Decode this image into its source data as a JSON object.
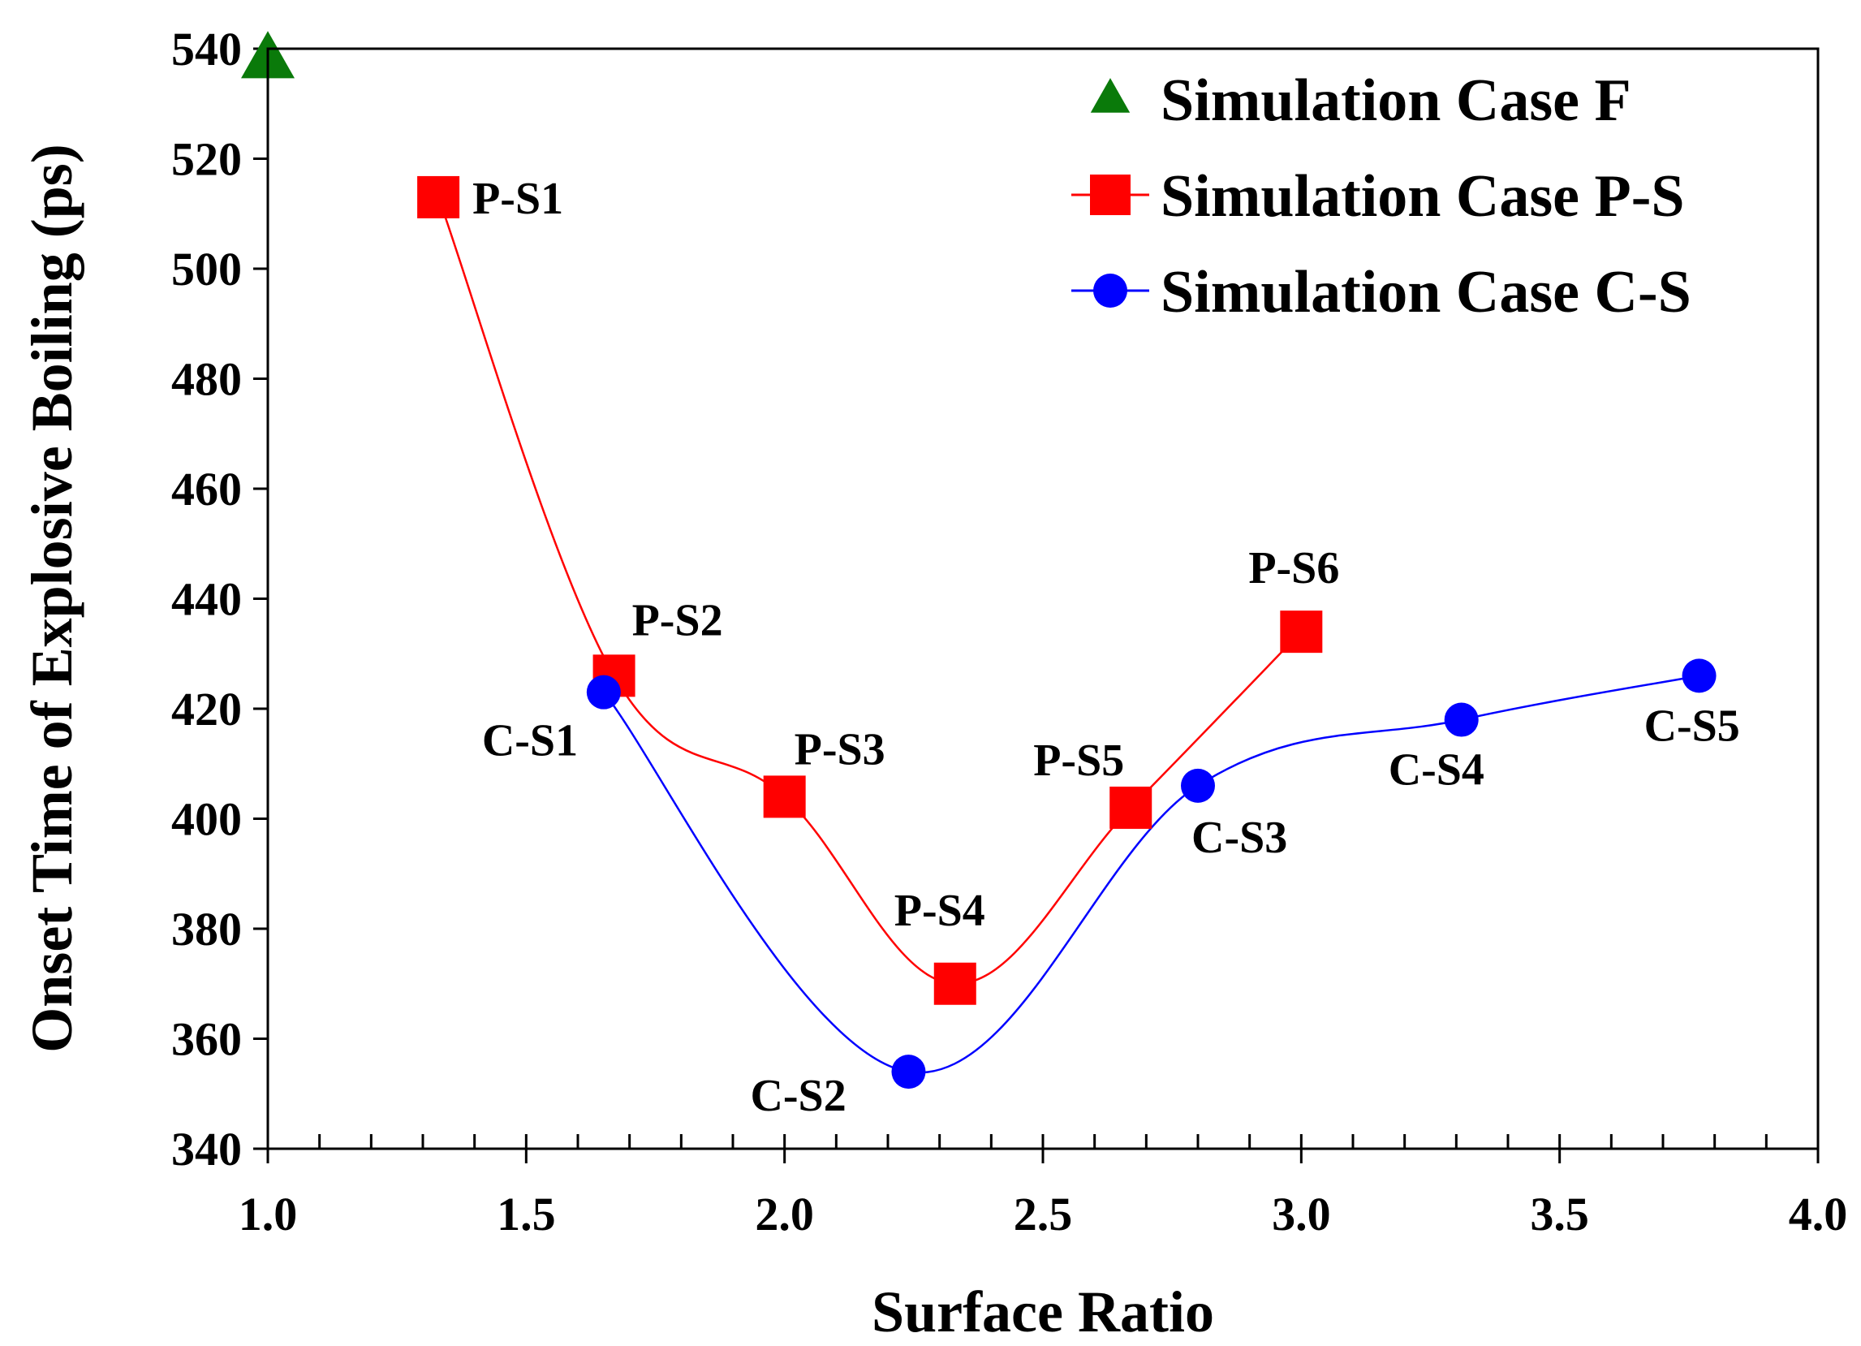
{
  "chart_data": {
    "type": "scatter",
    "xlabel": "Surface Ratio",
    "ylabel": "Onset Time of Explosive Boiling (ps)",
    "xlim": [
      1.0,
      4.0
    ],
    "ylim": [
      340,
      540
    ],
    "x_major_ticks": [
      1.0,
      1.5,
      2.0,
      2.5,
      3.0,
      3.5,
      4.0
    ],
    "x_tick_labels": [
      "1.0",
      "1.5",
      "2.0",
      "2.5",
      "3.0",
      "3.5",
      "4.0"
    ],
    "y_major_ticks": [
      340,
      360,
      380,
      400,
      420,
      440,
      460,
      480,
      500,
      520,
      540
    ],
    "y_tick_labels": [
      "340",
      "360",
      "380",
      "400",
      "420",
      "440",
      "460",
      "480",
      "500",
      "520",
      "540"
    ],
    "x_minor_step": 0.1,
    "grid": false,
    "legend_position": "top-right",
    "series": [
      {
        "name": "Simulation Case F",
        "marker": "triangle",
        "color": "#0a7a0a",
        "line": false,
        "points": [
          {
            "x": 1.0,
            "y": 538,
            "label": ""
          }
        ]
      },
      {
        "name": "Simulation Case P-S",
        "marker": "square",
        "color": "#ff0000",
        "line": true,
        "points": [
          {
            "x": 1.33,
            "y": 513,
            "label": "P-S1"
          },
          {
            "x": 1.67,
            "y": 426,
            "label": "P-S2"
          },
          {
            "x": 2.0,
            "y": 404,
            "label": "P-S3"
          },
          {
            "x": 2.33,
            "y": 370,
            "label": "P-S4"
          },
          {
            "x": 2.67,
            "y": 402,
            "label": "P-S5"
          },
          {
            "x": 3.0,
            "y": 434,
            "label": "P-S6"
          }
        ]
      },
      {
        "name": "Simulation Case C-S",
        "marker": "circle",
        "color": "#0000ff",
        "line": true,
        "points": [
          {
            "x": 1.65,
            "y": 423,
            "label": "C-S1"
          },
          {
            "x": 2.24,
            "y": 354,
            "label": "C-S2"
          },
          {
            "x": 2.8,
            "y": 406,
            "label": "C-S3"
          },
          {
            "x": 3.31,
            "y": 418,
            "label": "C-S4"
          },
          {
            "x": 3.77,
            "y": 426,
            "label": "C-S5"
          }
        ]
      }
    ]
  }
}
